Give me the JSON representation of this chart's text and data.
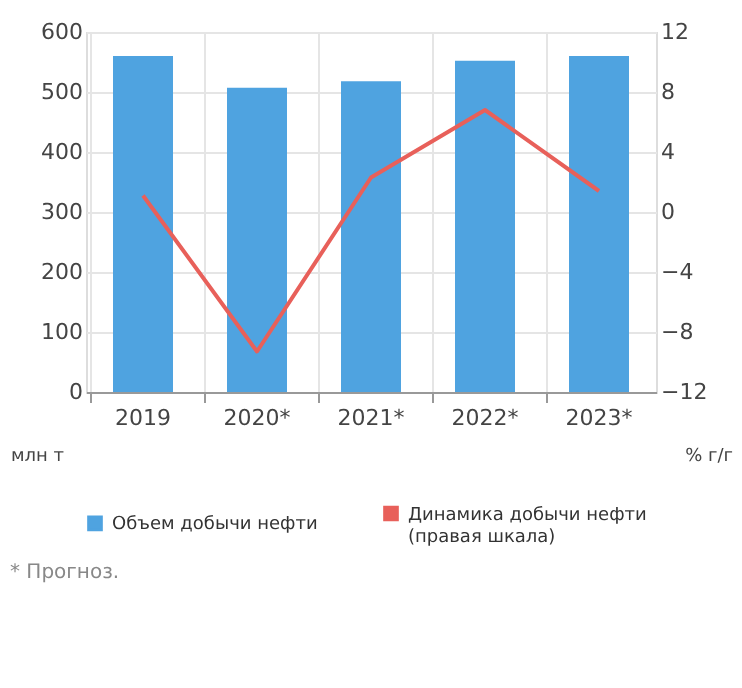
{
  "chart_data": {
    "type": "bar",
    "categories": [
      "2019",
      "2020*",
      "2021*",
      "2022*",
      "2023*"
    ],
    "series": [
      {
        "name": "Объем добычи нефти",
        "color": "#4fa3e0",
        "values": [
          560,
          507,
          518,
          552,
          560
        ]
      },
      {
        "name": "Динамика добычи нефти (правая шкала)",
        "type": "line",
        "axis": "y2",
        "color": "#e8605a",
        "values": [
          1.1,
          -9.3,
          2.3,
          6.8,
          1.4
        ]
      }
    ],
    "ylabel": "млн т",
    "y2label": "% г/г",
    "ylim": [
      0,
      600
    ],
    "yticks": [
      0,
      100,
      200,
      300,
      400,
      500,
      600
    ],
    "y2lim": [
      -12,
      12
    ],
    "y2ticks": [
      -12,
      -8,
      -4,
      0,
      4,
      8,
      12
    ],
    "grid": true,
    "legend": "bottom",
    "marker": "none",
    "line_style": "solid",
    "annotations": [
      "* Прогноз."
    ]
  }
}
